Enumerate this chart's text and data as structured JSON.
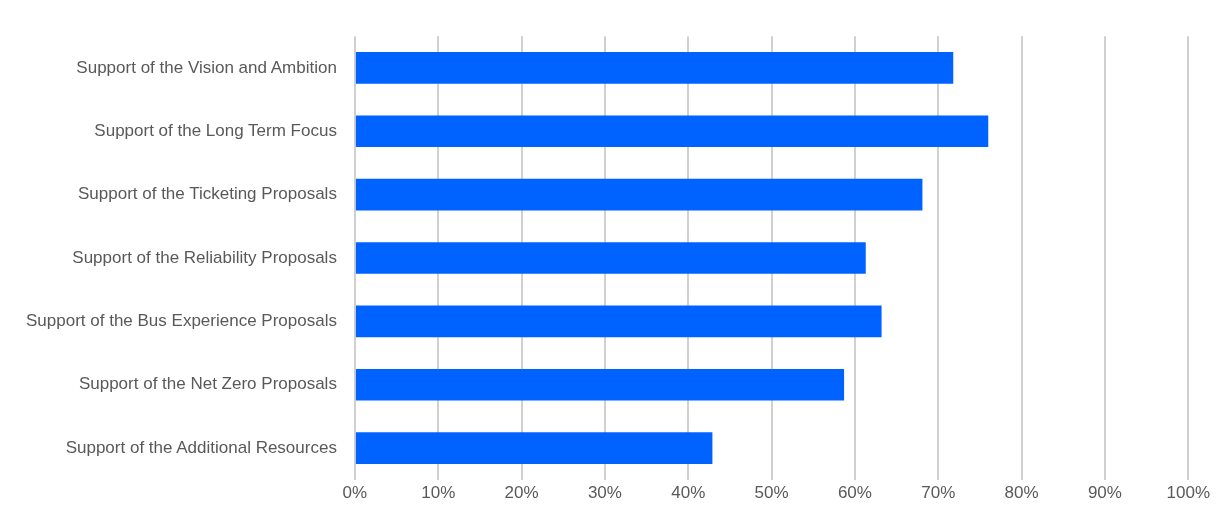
{
  "chart_data": {
    "type": "bar",
    "orientation": "horizontal",
    "categories": [
      "Support of the Vision and Ambition",
      "Support of the Long Term Focus",
      "Support of the Ticketing Proposals",
      "Support of the Reliability Proposals",
      "Support of the Bus Experience Proposals",
      "Support of the Net Zero Proposals",
      "Support of the Additional Resources"
    ],
    "values": [
      71.8,
      76.0,
      68.1,
      61.3,
      63.2,
      58.7,
      42.9
    ],
    "color": "#0062ff",
    "xlim": [
      0,
      100
    ],
    "xticks": [
      {
        "value": 0,
        "label": "0%"
      },
      {
        "value": 10,
        "label": "10%"
      },
      {
        "value": 20,
        "label": "20%"
      },
      {
        "value": 30,
        "label": "30%"
      },
      {
        "value": 40,
        "label": "40%"
      },
      {
        "value": 50,
        "label": "50%"
      },
      {
        "value": 60,
        "label": "60%"
      },
      {
        "value": 70,
        "label": "70%"
      },
      {
        "value": 80,
        "label": "80%"
      },
      {
        "value": 90,
        "label": "90%"
      },
      {
        "value": 100,
        "label": "100%"
      }
    ],
    "grid": "x",
    "legend": false
  }
}
